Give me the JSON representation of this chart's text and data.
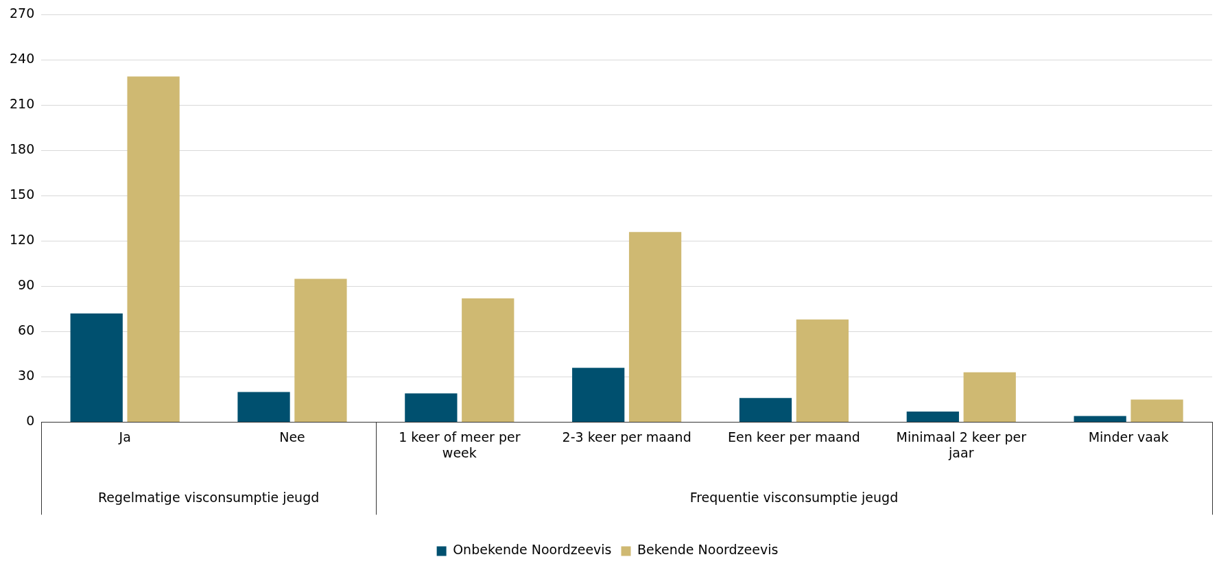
{
  "chart_data": {
    "type": "bar",
    "categories": [
      "Ja",
      "Nee",
      "1 keer of meer per week",
      "2-3 keer per maand",
      "Een keer per maand",
      "Minimaal 2 keer per jaar",
      "Minder vaak"
    ],
    "series": [
      {
        "name": "Onbekende Noordzeevis",
        "color": "#00506f",
        "values": [
          72,
          20,
          19,
          36,
          16,
          7,
          4
        ]
      },
      {
        "name": "Bekende Noordzeevis",
        "color": "#cfb972",
        "values": [
          229,
          95,
          82,
          126,
          68,
          33,
          15
        ]
      }
    ],
    "ylim": [
      0,
      270
    ],
    "yticks": [
      0,
      30,
      60,
      90,
      120,
      150,
      180,
      210,
      240,
      270
    ],
    "grid": "y",
    "legend": "bottom",
    "annotations": [
      "Regelmatige visconsumptie jeugd",
      "Frequentie visconsumptie jeugd"
    ]
  }
}
